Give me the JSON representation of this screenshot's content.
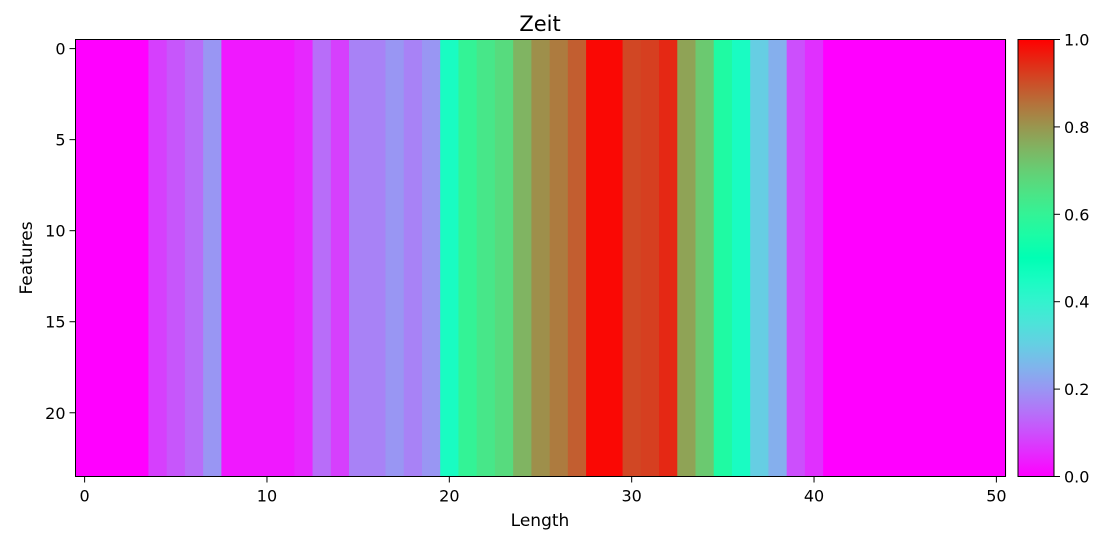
{
  "chart_data": {
    "type": "heatmap",
    "title": "Zeit",
    "xlabel": "Length",
    "ylabel": "Features",
    "rows": 24,
    "columns": 51,
    "colormap": "rainbow",
    "xticks": [
      0,
      10,
      20,
      30,
      40,
      50
    ],
    "yticks": [
      0,
      5,
      10,
      15,
      20
    ],
    "colorbar": {
      "range": [
        0.0,
        1.0
      ],
      "ticks": [
        "0.0",
        "0.2",
        "0.4",
        "0.6",
        "0.8",
        "1.0"
      ]
    },
    "column_values": [
      0.0,
      0.0,
      0.0,
      0.0,
      0.08,
      0.11,
      0.14,
      0.2,
      0.03,
      0.03,
      0.03,
      0.03,
      0.05,
      0.14,
      0.08,
      0.17,
      0.17,
      0.2,
      0.17,
      0.2,
      0.45,
      0.6,
      0.64,
      0.67,
      0.75,
      0.81,
      0.84,
      0.88,
      0.99,
      0.99,
      0.91,
      0.92,
      0.95,
      0.78,
      0.71,
      0.56,
      0.45,
      0.3,
      0.24,
      0.1,
      0.06,
      0.0,
      0.0,
      0.0,
      0.0,
      0.0,
      0.0,
      0.0,
      0.0,
      0.0,
      0.0
    ]
  }
}
